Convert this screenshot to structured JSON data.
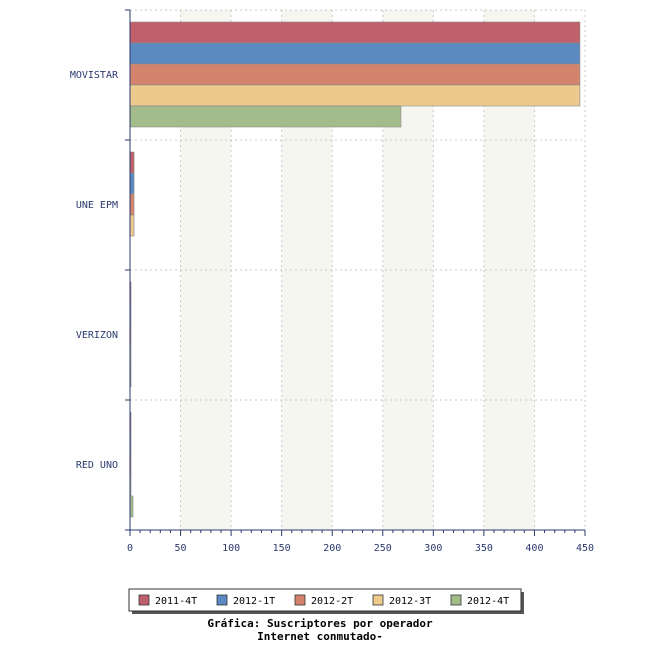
{
  "chart_data": {
    "type": "bar",
    "orientation": "horizontal",
    "title": "",
    "caption": [
      "Gráfica: Suscriptores por operador",
      "Internet conmutado-"
    ],
    "categories": [
      "MOVISTAR",
      "UNE EPM",
      "VERIZON",
      "RED UNO"
    ],
    "series": [
      {
        "name": "2011-4T",
        "color": "#c0606a",
        "values": [
          445,
          4,
          1,
          1
        ]
      },
      {
        "name": "2012-1T",
        "color": "#5b8ac0",
        "values": [
          445,
          4,
          1,
          1
        ]
      },
      {
        "name": "2012-2T",
        "color": "#d4846c",
        "values": [
          445,
          4,
          1,
          1
        ]
      },
      {
        "name": "2012-3T",
        "color": "#ecc98c",
        "values": [
          445,
          4,
          1,
          1
        ]
      },
      {
        "name": "2012-4T",
        "color": "#a4bc8c",
        "values": [
          268,
          0,
          1,
          3
        ]
      }
    ],
    "x_ticks": [
      0,
      50,
      100,
      150,
      200,
      250,
      300,
      350,
      400,
      450
    ],
    "xlim": [
      0,
      450
    ],
    "grid": true,
    "legend_position": "bottom"
  }
}
